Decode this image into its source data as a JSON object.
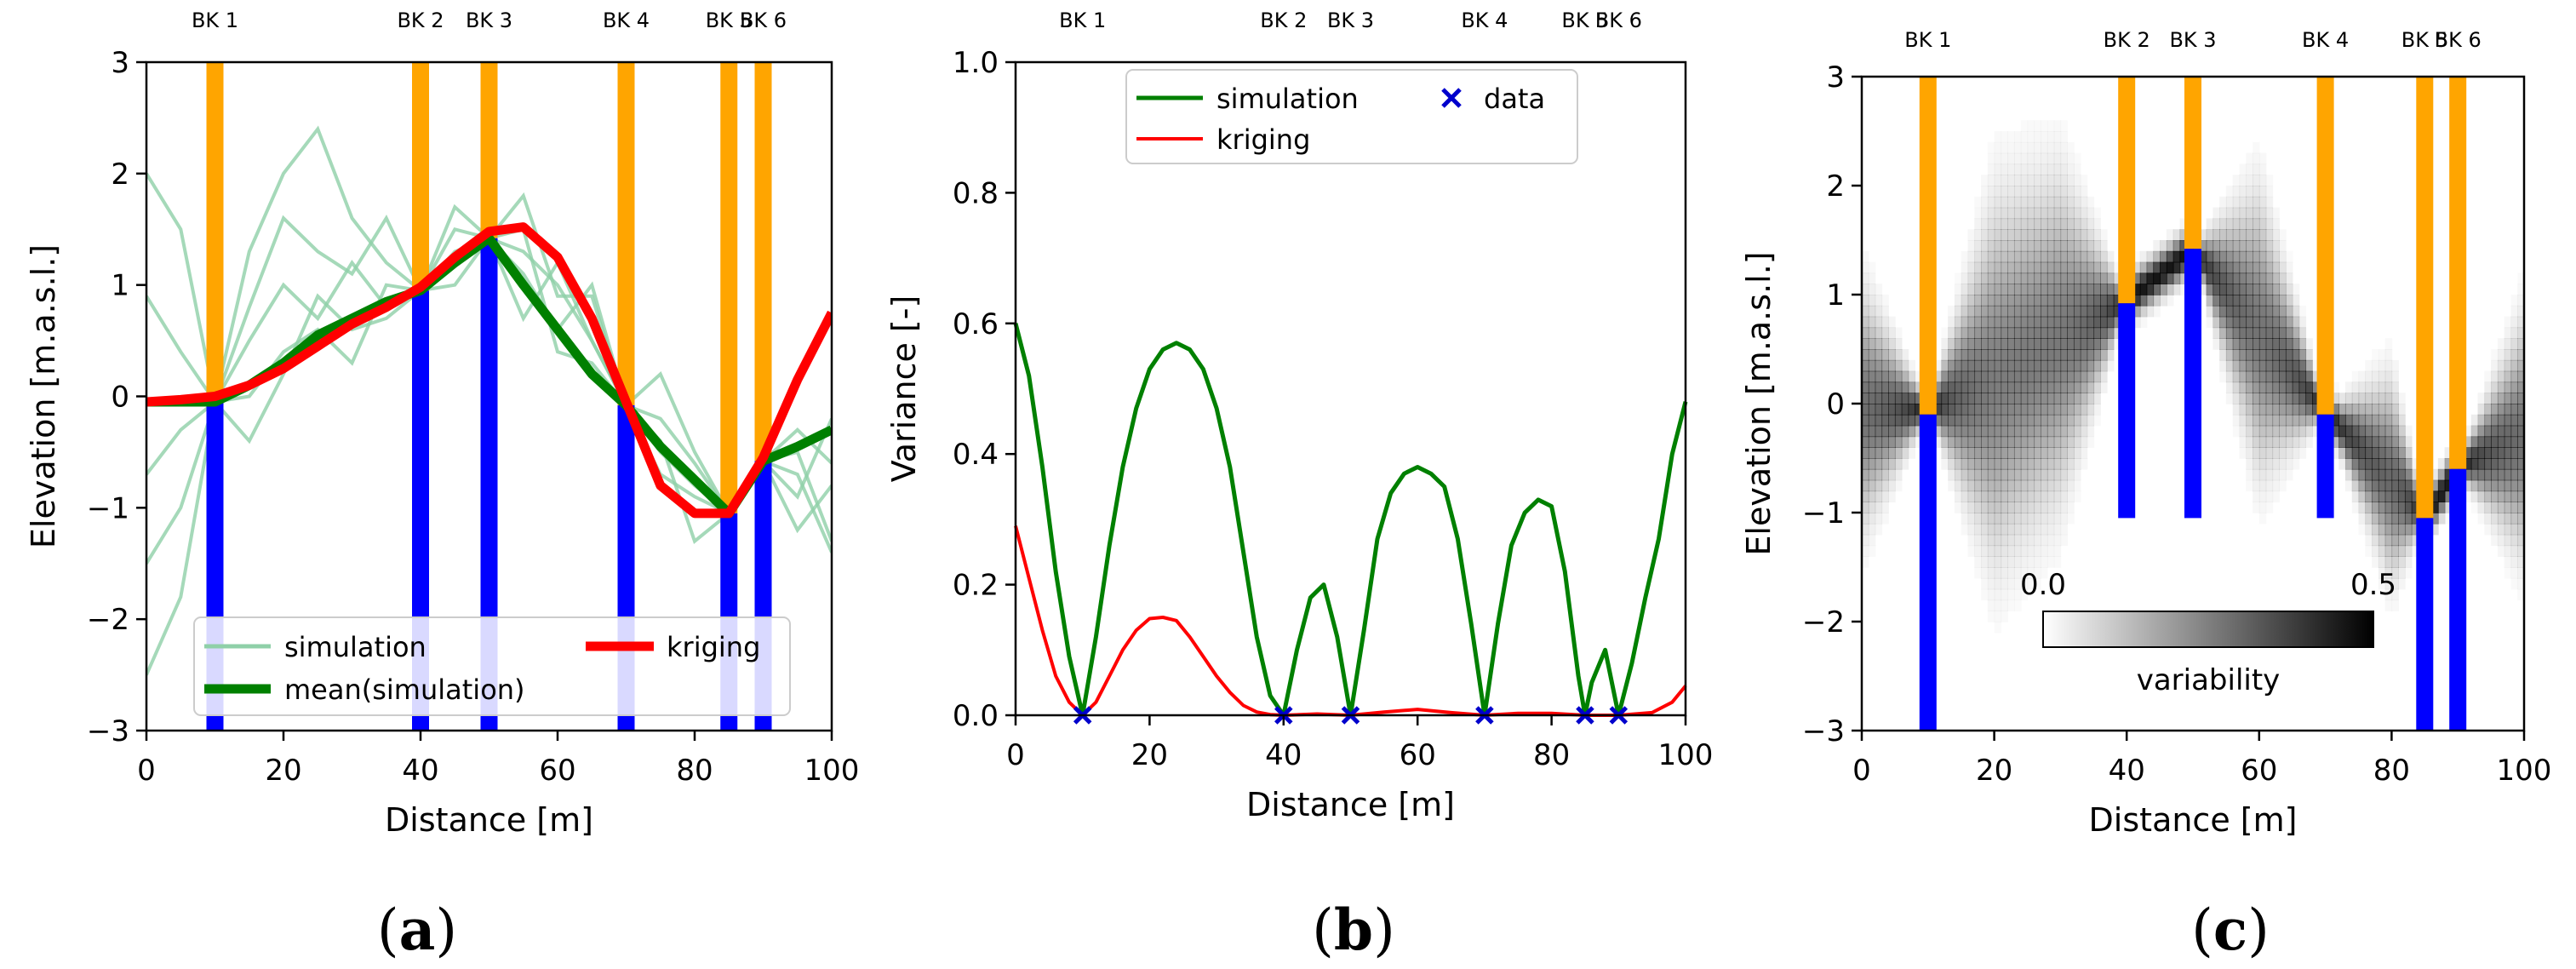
{
  "chart_data": [
    {
      "panel": "a",
      "panel_label": [
        "(",
        "a",
        ")"
      ],
      "type": "line",
      "xlabel": "Distance [m]",
      "ylabel": "Elevation [m.a.s.l.]",
      "xlim": [
        0,
        100
      ],
      "ylim": [
        -3,
        3
      ],
      "xticks": [
        0,
        20,
        40,
        60,
        80,
        100
      ],
      "yticks": [
        -3,
        -2,
        -1,
        0,
        1,
        2,
        3
      ],
      "boreholes": [
        {
          "label": "BK 1",
          "x": 10,
          "contact": -0.05
        },
        {
          "label": "BK 2",
          "x": 40,
          "contact": 0.95
        },
        {
          "label": "BK 3",
          "x": 50,
          "contact": 1.42
        },
        {
          "label": "BK 4",
          "x": 70,
          "contact": -0.08
        },
        {
          "label": "BK 5",
          "x": 85,
          "contact": -1.05
        },
        {
          "label": "BK 6",
          "x": 90,
          "contact": -0.58
        }
      ],
      "series": [
        {
          "name": "simulation",
          "style": "realization",
          "x": [
            0,
            5,
            10,
            15,
            20,
            25,
            30,
            35,
            40,
            45,
            50,
            55,
            60,
            65,
            70,
            75,
            80,
            85,
            90,
            95,
            100
          ],
          "values": [
            2.0,
            1.5,
            -0.05,
            1.3,
            2.0,
            2.4,
            1.6,
            1.2,
            0.95,
            1.2,
            1.42,
            1.3,
            1.0,
            0.5,
            -0.08,
            -0.5,
            -0.8,
            -1.05,
            -0.58,
            -0.7,
            -1.4
          ]
        },
        {
          "name": "simulation",
          "style": "realization",
          "x": [
            0,
            5,
            10,
            15,
            20,
            25,
            30,
            35,
            40,
            45,
            50,
            55,
            60,
            65,
            70,
            75,
            80,
            85,
            90,
            95,
            100
          ],
          "values": [
            -0.7,
            -0.3,
            -0.05,
            0.8,
            1.6,
            1.3,
            1.1,
            1.6,
            0.95,
            1.7,
            1.42,
            1.8,
            0.9,
            0.9,
            -0.08,
            0.2,
            -0.5,
            -1.05,
            -0.58,
            -0.3,
            -0.6
          ]
        },
        {
          "name": "simulation",
          "style": "realization",
          "x": [
            0,
            5,
            10,
            15,
            20,
            25,
            30,
            35,
            40,
            45,
            50,
            55,
            60,
            65,
            70,
            75,
            80,
            85,
            90,
            95,
            100
          ],
          "values": [
            -1.5,
            -1.0,
            -0.05,
            0.5,
            1.0,
            0.7,
            1.2,
            0.8,
            0.95,
            1.3,
            1.42,
            1.1,
            0.6,
            1.0,
            -0.08,
            -0.7,
            -0.9,
            -1.05,
            -0.58,
            -1.2,
            -0.8
          ]
        },
        {
          "name": "simulation",
          "style": "realization",
          "x": [
            0,
            5,
            10,
            15,
            20,
            25,
            30,
            35,
            40,
            45,
            50,
            55,
            60,
            65,
            70,
            75,
            80,
            85,
            90,
            95,
            100
          ],
          "values": [
            -2.5,
            -1.8,
            -0.05,
            0.0,
            0.4,
            0.6,
            0.3,
            1.0,
            0.95,
            1.5,
            1.42,
            0.7,
            1.2,
            0.5,
            -0.08,
            -0.4,
            -1.3,
            -1.05,
            -0.58,
            -0.9,
            -0.2
          ]
        },
        {
          "name": "simulation",
          "style": "realization",
          "x": [
            0,
            5,
            10,
            15,
            20,
            25,
            30,
            35,
            40,
            45,
            50,
            55,
            60,
            65,
            70,
            75,
            80,
            85,
            90,
            95,
            100
          ],
          "values": [
            0.9,
            0.4,
            -0.05,
            -0.4,
            0.2,
            0.9,
            0.6,
            0.7,
            0.95,
            1.0,
            1.42,
            1.5,
            0.4,
            0.3,
            -0.08,
            -0.2,
            -0.6,
            -1.05,
            -0.58,
            -0.5,
            -1.3
          ]
        },
        {
          "name": "mean(simulation)",
          "style": "mean",
          "x": [
            0,
            5,
            10,
            15,
            20,
            25,
            30,
            35,
            40,
            45,
            50,
            55,
            60,
            65,
            70,
            75,
            80,
            85,
            90,
            95,
            100
          ],
          "values": [
            -0.05,
            -0.05,
            -0.05,
            0.1,
            0.3,
            0.55,
            0.7,
            0.85,
            0.95,
            1.2,
            1.42,
            1.0,
            0.6,
            0.2,
            -0.08,
            -0.45,
            -0.75,
            -1.05,
            -0.58,
            -0.45,
            -0.3
          ]
        },
        {
          "name": "kriging",
          "style": "kriging",
          "x": [
            0,
            5,
            10,
            15,
            20,
            25,
            30,
            35,
            40,
            45,
            50,
            55,
            60,
            65,
            70,
            75,
            80,
            85,
            90,
            95,
            100
          ],
          "values": [
            -0.05,
            -0.03,
            0.0,
            0.1,
            0.25,
            0.45,
            0.65,
            0.8,
            0.98,
            1.25,
            1.48,
            1.52,
            1.25,
            0.7,
            -0.05,
            -0.8,
            -1.05,
            -1.05,
            -0.55,
            0.15,
            0.75
          ]
        }
      ],
      "legend": [
        "simulation",
        "mean(simulation)",
        "kriging"
      ],
      "legend_position": "lower-right"
    },
    {
      "panel": "b",
      "panel_label": [
        "(",
        "b",
        ")"
      ],
      "type": "line",
      "xlabel": "Distance [m]",
      "ylabel": "Variance [-]",
      "xlim": [
        0,
        100
      ],
      "ylim": [
        0.0,
        1.0
      ],
      "xticks": [
        0,
        20,
        40,
        60,
        80,
        100
      ],
      "yticks": [
        0.0,
        0.2,
        0.4,
        0.6,
        0.8,
        1.0
      ],
      "ytick_labels": [
        "0.0",
        "0.2",
        "0.4",
        "0.6",
        "0.8",
        "1.0"
      ],
      "borehole_labels": [
        "BK 1",
        "BK 2",
        "BK 3",
        "BK 4",
        "BK 5",
        "BK 6"
      ],
      "series": [
        {
          "name": "simulation",
          "x": [
            0,
            2,
            4,
            6,
            8,
            10,
            12,
            14,
            16,
            18,
            20,
            22,
            24,
            26,
            28,
            30,
            32,
            34,
            36,
            38,
            40,
            42,
            44,
            46,
            48,
            50,
            52,
            54,
            56,
            58,
            60,
            62,
            64,
            66,
            68,
            70,
            72,
            74,
            76,
            78,
            80,
            82,
            84,
            85,
            86,
            88,
            90,
            92,
            94,
            96,
            98,
            100
          ],
          "values": [
            0.6,
            0.52,
            0.38,
            0.22,
            0.09,
            0.0,
            0.12,
            0.26,
            0.38,
            0.47,
            0.53,
            0.56,
            0.57,
            0.56,
            0.53,
            0.47,
            0.38,
            0.25,
            0.12,
            0.03,
            0.0,
            0.1,
            0.18,
            0.2,
            0.12,
            0.0,
            0.13,
            0.27,
            0.34,
            0.37,
            0.38,
            0.37,
            0.35,
            0.27,
            0.14,
            0.0,
            0.14,
            0.26,
            0.31,
            0.33,
            0.32,
            0.22,
            0.06,
            0.0,
            0.05,
            0.1,
            0.0,
            0.08,
            0.18,
            0.27,
            0.4,
            0.48
          ]
        },
        {
          "name": "kriging",
          "x": [
            0,
            2,
            4,
            6,
            8,
            10,
            12,
            14,
            16,
            18,
            20,
            22,
            24,
            26,
            28,
            30,
            32,
            34,
            36,
            38,
            40,
            45,
            50,
            55,
            60,
            65,
            70,
            75,
            80,
            85,
            90,
            95,
            98,
            100
          ],
          "values": [
            0.29,
            0.21,
            0.13,
            0.06,
            0.02,
            0.0,
            0.02,
            0.06,
            0.1,
            0.13,
            0.148,
            0.15,
            0.145,
            0.12,
            0.09,
            0.06,
            0.035,
            0.015,
            0.005,
            0.001,
            0.0,
            0.002,
            0.0,
            0.005,
            0.009,
            0.004,
            0.0,
            0.003,
            0.003,
            0.0,
            0.0,
            0.004,
            0.02,
            0.045
          ]
        },
        {
          "name": "data",
          "type": "scatter",
          "x": [
            10,
            40,
            50,
            70,
            85,
            90
          ],
          "values": [
            0,
            0,
            0,
            0,
            0,
            0
          ]
        }
      ],
      "legend": [
        "simulation",
        "kriging",
        "data"
      ],
      "legend_position": "upper-center"
    },
    {
      "panel": "c",
      "panel_label": [
        "(",
        "c",
        ")"
      ],
      "type": "heatmap",
      "xlabel": "Distance [m]",
      "ylabel": "Elevation [m.a.s.l.]",
      "xlim": [
        0,
        100
      ],
      "ylim": [
        -3,
        3
      ],
      "xticks": [
        0,
        20,
        40,
        60,
        80,
        100
      ],
      "yticks": [
        -3,
        -2,
        -1,
        0,
        1,
        2,
        3
      ],
      "center_line": {
        "x": [
          0,
          10,
          20,
          30,
          40,
          50,
          60,
          70,
          80,
          85,
          90,
          100
        ],
        "values": [
          -0.05,
          -0.05,
          0.2,
          0.6,
          0.95,
          1.42,
          0.65,
          -0.08,
          -0.7,
          -1.05,
          -0.58,
          -0.3
        ]
      },
      "spread": {
        "x": [
          0,
          10,
          20,
          30,
          40,
          50,
          60,
          70,
          80,
          85,
          90,
          100
        ],
        "values": [
          0.6,
          0.02,
          0.9,
          0.8,
          0.02,
          0.02,
          0.7,
          0.02,
          0.5,
          0.02,
          0.02,
          0.6
        ]
      },
      "boreholes": [
        {
          "label": "BK 1",
          "x": 10,
          "contact": -0.1,
          "bottom": -3
        },
        {
          "label": "BK 2",
          "x": 40,
          "contact": 0.92,
          "bottom": -1.05
        },
        {
          "label": "BK 3",
          "x": 50,
          "contact": 1.42,
          "bottom": -1.05
        },
        {
          "label": "BK 4",
          "x": 70,
          "contact": -0.1,
          "bottom": -1.05
        },
        {
          "label": "BK 5",
          "x": 85,
          "contact": -1.05,
          "bottom": -3
        },
        {
          "label": "BK 6",
          "x": 90,
          "contact": -0.6,
          "bottom": -3
        }
      ],
      "colorbar": {
        "min_label": "0.0",
        "max_label": "0.5",
        "label": "variability",
        "range": [
          0.0,
          0.5
        ]
      }
    }
  ],
  "colors": {
    "borehole_top": "#FFA500",
    "borehole_bottom": "#0000FF",
    "simulation_light": "#8fd0a8",
    "simulation": "#008000",
    "kriging": "#FF0000",
    "data_marker": "#0000CC"
  }
}
